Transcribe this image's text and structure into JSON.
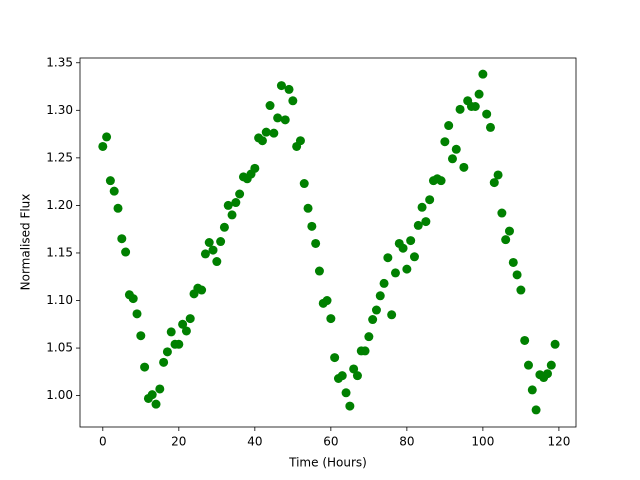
{
  "chart_data": {
    "type": "scatter",
    "x_label": "Time (Hours)",
    "y_label": "Normalised Flux",
    "color": "#008000",
    "x": [
      0,
      1,
      2,
      3,
      4,
      5,
      6,
      7,
      8,
      9,
      10,
      11,
      12,
      13,
      14,
      15,
      16,
      17,
      18,
      19,
      20,
      21,
      22,
      23,
      24,
      25,
      26,
      27,
      28,
      29,
      30,
      31,
      32,
      33,
      34,
      35,
      36,
      37,
      38,
      39,
      40,
      41,
      42,
      43,
      44,
      45,
      46,
      47,
      48,
      49,
      50,
      51,
      52,
      53,
      54,
      55,
      56,
      57,
      58,
      59,
      60,
      61,
      62,
      63,
      64,
      65,
      66,
      67,
      68,
      69,
      70,
      71,
      72,
      73,
      74,
      75,
      76,
      77,
      78,
      79,
      80,
      81,
      82,
      83,
      84,
      85,
      86,
      87,
      88,
      89,
      90,
      91,
      92,
      93,
      94,
      95,
      96,
      97,
      98,
      99,
      100,
      101,
      102,
      103,
      104,
      105,
      106,
      107,
      108,
      109,
      110,
      111,
      112,
      113,
      114,
      115,
      116,
      117,
      118,
      119
    ],
    "values": [
      1.262,
      1.272,
      1.226,
      1.215,
      1.197,
      1.165,
      1.151,
      1.106,
      1.102,
      1.086,
      1.063,
      1.03,
      0.997,
      1.001,
      0.991,
      1.007,
      1.035,
      1.046,
      1.067,
      1.054,
      1.054,
      1.075,
      1.068,
      1.081,
      1.107,
      1.113,
      1.111,
      1.149,
      1.161,
      1.153,
      1.141,
      1.162,
      1.177,
      1.2,
      1.19,
      1.203,
      1.212,
      1.23,
      1.228,
      1.233,
      1.239,
      1.271,
      1.268,
      1.277,
      1.305,
      1.276,
      1.292,
      1.326,
      1.29,
      1.322,
      1.31,
      1.262,
      1.268,
      1.223,
      1.197,
      1.178,
      1.16,
      1.131,
      1.097,
      1.1,
      1.081,
      1.04,
      1.018,
      1.021,
      1.003,
      0.989,
      1.028,
      1.021,
      1.047,
      1.047,
      1.062,
      1.08,
      1.09,
      1.105,
      1.118,
      1.145,
      1.085,
      1.129,
      1.16,
      1.155,
      1.133,
      1.163,
      1.146,
      1.179,
      1.198,
      1.183,
      1.206,
      1.226,
      1.228,
      1.226,
      1.267,
      1.284,
      1.249,
      1.259,
      1.301,
      1.24,
      1.31,
      1.304,
      1.304,
      1.317,
      1.338,
      1.296,
      1.282,
      1.224,
      1.232,
      1.192,
      1.164,
      1.173,
      1.14,
      1.127,
      1.111,
      1.058,
      1.032,
      1.006,
      0.985,
      1.022,
      1.019,
      1.023,
      1.032,
      1.054
    ],
    "xlim": [
      -6.0,
      124.5
    ],
    "ylim": [
      0.967,
      1.355
    ],
    "xticks": [
      0,
      20,
      40,
      60,
      80,
      100,
      120
    ],
    "yticks": [
      {
        "value": 1.0,
        "label": "1.00"
      },
      1.05,
      {
        "value": 1.1,
        "label": "1.10"
      },
      1.15,
      {
        "value": 1.2,
        "label": "1.20"
      },
      1.25,
      {
        "value": 1.3,
        "label": "1.30"
      },
      1.35
    ]
  }
}
